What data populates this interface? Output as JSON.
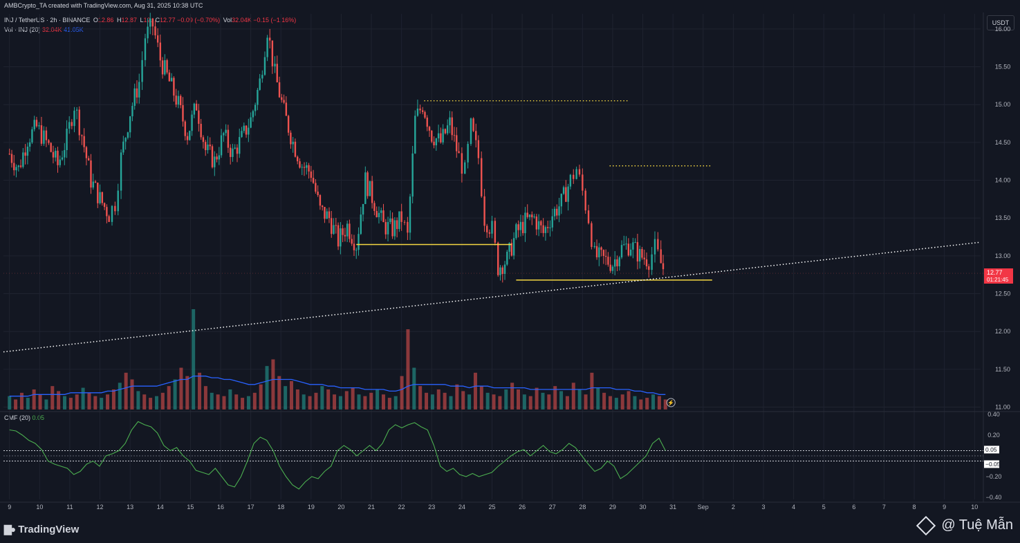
{
  "header": {
    "text": "AMBCrypto_TA created with TradingView.com, Aug 31, 2025 10:38 UTC"
  },
  "legend": {
    "symbol": "INJ / TetherUS · 2h · BINANCE",
    "o_label": "O",
    "o_value": "12.86",
    "h_label": "H",
    "h_value": "12.87",
    "l_label": "L",
    "l_value": "12.",
    "c_label": "C",
    "c_value": "12.77",
    "change": "−0.09 (−0.70%)",
    "vol_label": "Vol",
    "vol_value": "32.04K",
    "vol_change": "−0.15 (−1.16%)",
    "vol_ma_label": "Vol · INJ (20)",
    "vol_ma_value1": "32.04K",
    "vol_ma_value2": "41.05K",
    "cmf_label": "CMF (20)",
    "cmf_value": "0.05"
  },
  "currency_button": "USDT",
  "last_price": {
    "value": "12.77",
    "countdown": "01:21:45"
  },
  "cmf_badges": {
    "pos": "0.05",
    "neg": "−0.05"
  },
  "footer": {
    "brand": "TradingView",
    "watermark": "@ Tuệ Mẫn"
  },
  "colors": {
    "up": "#26a69a",
    "down": "#ef5350",
    "vol_ma": "#2962ff",
    "cmf": "#4caf50",
    "level": "#f5d742",
    "trendline": "#ffffff",
    "background": "#131722"
  },
  "chart_data": [
    {
      "type": "candlestick",
      "title": "INJ / TetherUS · 2h · BINANCE",
      "ylabel": "",
      "ylim": [
        10.95,
        16.2
      ],
      "yticks": [
        "16.00",
        "15.50",
        "15.00",
        "14.50",
        "14.00",
        "13.50",
        "13.00",
        "12.50",
        "12.00",
        "11.50",
        "11.00"
      ],
      "ytick_values": [
        16.0,
        15.5,
        15.0,
        14.5,
        14.0,
        13.5,
        13.0,
        12.5,
        12.0,
        11.5,
        11.0
      ],
      "xticks": [
        "9",
        "10",
        "11",
        "12",
        "13",
        "14",
        "15",
        "16",
        "17",
        "18",
        "19",
        "20",
        "21",
        "22",
        "23",
        "24",
        "25",
        "26",
        "27",
        "28",
        "29",
        "30",
        "31",
        "Sep",
        "2",
        "3",
        "4",
        "5",
        "6",
        "7",
        "8",
        "9",
        "10"
      ],
      "x_unit": "days from Aug 9 (index of tick)",
      "x_range": [
        -0.2,
        32.2
      ],
      "close_path": [
        [
          0.0,
          14.35
        ],
        [
          0.3,
          14.15
        ],
        [
          0.6,
          14.55
        ],
        [
          0.9,
          14.7
        ],
        [
          1.3,
          14.45
        ],
        [
          1.6,
          14.2
        ],
        [
          1.9,
          14.55
        ],
        [
          2.15,
          15.0
        ],
        [
          2.4,
          14.6
        ],
        [
          2.7,
          14.0
        ],
        [
          3.0,
          13.75
        ],
        [
          3.3,
          13.55
        ],
        [
          3.5,
          13.7
        ],
        [
          3.7,
          14.3
        ],
        [
          4.0,
          14.9
        ],
        [
          4.3,
          15.3
        ],
        [
          4.5,
          15.9
        ],
        [
          4.75,
          16.05
        ],
        [
          5.0,
          15.6
        ],
        [
          5.3,
          15.3
        ],
        [
          5.6,
          15.0
        ],
        [
          5.9,
          14.6
        ],
        [
          6.2,
          15.0
        ],
        [
          6.5,
          14.4
        ],
        [
          6.8,
          14.25
        ],
        [
          7.1,
          14.6
        ],
        [
          7.4,
          14.35
        ],
        [
          7.7,
          14.55
        ],
        [
          8.0,
          14.8
        ],
        [
          8.3,
          15.3
        ],
        [
          8.55,
          16.0
        ],
        [
          8.8,
          15.4
        ],
        [
          9.1,
          14.9
        ],
        [
          9.4,
          14.5
        ],
        [
          9.7,
          14.2
        ],
        [
          10.0,
          14.1
        ],
        [
          10.3,
          13.6
        ],
        [
          10.6,
          13.5
        ],
        [
          10.9,
          13.2
        ],
        [
          11.2,
          13.4
        ],
        [
          11.5,
          13.15
        ],
        [
          11.8,
          14.0
        ],
        [
          12.1,
          13.7
        ],
        [
          12.4,
          13.4
        ],
        [
          12.7,
          13.35
        ],
        [
          13.0,
          13.5
        ],
        [
          13.2,
          13.25
        ],
        [
          13.45,
          14.8
        ],
        [
          13.7,
          15.0
        ],
        [
          14.0,
          14.6
        ],
        [
          14.3,
          14.5
        ],
        [
          14.6,
          14.75
        ],
        [
          14.9,
          14.3
        ],
        [
          15.1,
          14.1
        ],
        [
          15.3,
          14.7
        ],
        [
          15.55,
          14.3
        ],
        [
          15.75,
          13.5
        ],
        [
          16.0,
          13.35
        ],
        [
          16.2,
          12.85
        ],
        [
          16.5,
          12.95
        ],
        [
          16.8,
          13.3
        ],
        [
          17.1,
          13.45
        ],
        [
          17.4,
          13.5
        ],
        [
          17.7,
          13.3
        ],
        [
          18.0,
          13.55
        ],
        [
          18.3,
          13.7
        ],
        [
          18.6,
          14.0
        ],
        [
          18.8,
          14.15
        ],
        [
          19.0,
          13.85
        ],
        [
          19.2,
          13.5
        ],
        [
          19.4,
          13.0
        ],
        [
          19.7,
          12.95
        ],
        [
          20.0,
          12.9
        ],
        [
          20.3,
          13.1
        ],
        [
          20.6,
          13.15
        ],
        [
          20.9,
          13.0
        ],
        [
          21.2,
          12.95
        ],
        [
          21.4,
          13.1
        ],
        [
          21.6,
          12.9
        ],
        [
          21.75,
          12.77
        ]
      ],
      "candle_color_sequence": "up=1 down=0 alternating per close_path direction"
    },
    {
      "type": "bar",
      "title": "Vol · INJ (20)",
      "series": [
        {
          "name": "Volume",
          "values": [
            8,
            6,
            10,
            7,
            12,
            9,
            6,
            14,
            11,
            8,
            7,
            9,
            13,
            10,
            8,
            7,
            9,
            12,
            16,
            22,
            18,
            11,
            9,
            7,
            8,
            10,
            14,
            18,
            25,
            20,
            60,
            22,
            14,
            10,
            9,
            8,
            12,
            9,
            7,
            8,
            10,
            15,
            26,
            30,
            20,
            14,
            17,
            12,
            9,
            8,
            10,
            14,
            12,
            9,
            8,
            11,
            13,
            9,
            8,
            10,
            12,
            9,
            7,
            8,
            20,
            48,
            25,
            14,
            10,
            9,
            12,
            10,
            8,
            15,
            11,
            9,
            22,
            14,
            10,
            9,
            8,
            12,
            16,
            12,
            9,
            8,
            13,
            10,
            9,
            14,
            11,
            8,
            16,
            12,
            9,
            22,
            13,
            10,
            8,
            7,
            9,
            11,
            8,
            6,
            7,
            9,
            8,
            6
          ]
        },
        {
          "name": "Vol MA (20)",
          "values": [
            8,
            8,
            8,
            8,
            9,
            9,
            9,
            9,
            9,
            9,
            10,
            10,
            10,
            10,
            10,
            10,
            11,
            11,
            12,
            13,
            14,
            14,
            14,
            14,
            14,
            15,
            16,
            17,
            18,
            18,
            20,
            20,
            20,
            19,
            19,
            18,
            18,
            17,
            16,
            15,
            15,
            16,
            17,
            18,
            18,
            18,
            18,
            17,
            16,
            15,
            15,
            15,
            14,
            14,
            13,
            13,
            13,
            13,
            12,
            12,
            12,
            12,
            11,
            11,
            12,
            14,
            15,
            15,
            15,
            15,
            15,
            15,
            14,
            14,
            14,
            13,
            14,
            14,
            14,
            13,
            13,
            13,
            13,
            13,
            13,
            12,
            12,
            12,
            12,
            12,
            12,
            12,
            12,
            12,
            12,
            13,
            13,
            13,
            13,
            12,
            12,
            12,
            11,
            11,
            10,
            10,
            9,
            9
          ]
        }
      ]
    },
    {
      "type": "line",
      "title": "CMF (20)",
      "ylim": [
        -0.42,
        0.42
      ],
      "yticks": [
        "0.40",
        "0.20",
        "0.05",
        "−0.05",
        "−0.20",
        "−0.40"
      ],
      "ytick_values": [
        0.4,
        0.2,
        0.05,
        -0.05,
        -0.2,
        -0.4
      ],
      "series": [
        {
          "name": "CMF (20)",
          "values": [
            0.25,
            0.24,
            0.2,
            0.15,
            0.12,
            0.06,
            -0.05,
            -0.08,
            -0.1,
            -0.12,
            -0.18,
            -0.15,
            -0.08,
            -0.05,
            -0.1,
            0.0,
            0.02,
            0.05,
            0.12,
            0.25,
            0.33,
            0.3,
            0.28,
            0.22,
            0.1,
            0.05,
            0.08,
            0.0,
            -0.05,
            -0.14,
            -0.16,
            -0.18,
            -0.12,
            -0.2,
            -0.28,
            -0.3,
            -0.2,
            -0.05,
            0.12,
            0.18,
            0.15,
            0.05,
            -0.1,
            -0.2,
            -0.28,
            -0.32,
            -0.25,
            -0.2,
            -0.22,
            -0.15,
            -0.1,
            0.05,
            0.1,
            0.06,
            0.0,
            0.05,
            0.1,
            0.05,
            0.12,
            0.25,
            0.3,
            0.27,
            0.3,
            0.32,
            0.28,
            0.25,
            0.1,
            -0.1,
            -0.15,
            -0.12,
            -0.18,
            -0.2,
            -0.17,
            -0.2,
            -0.18,
            -0.16,
            -0.1,
            -0.05,
            0.0,
            0.04,
            0.06,
            0.0,
            0.05,
            0.1,
            0.04,
            0.02,
            0.06,
            0.12,
            0.08,
            0.0,
            -0.08,
            -0.15,
            -0.12,
            -0.05,
            -0.1,
            -0.22,
            -0.18,
            -0.12,
            -0.06,
            0.0,
            0.12,
            0.17,
            0.05
          ]
        }
      ]
    }
  ],
  "annotations": {
    "horizontal_levels": [
      {
        "y": 13.15,
        "x_start": 11.5,
        "x_end": 16.65,
        "style": "solid"
      },
      {
        "y": 12.68,
        "x_start": 16.8,
        "x_end": 23.3,
        "style": "solid"
      },
      {
        "y": 15.05,
        "x_start": 13.75,
        "x_end": 20.5,
        "style": "dotted"
      },
      {
        "y": 14.19,
        "x_start": 19.9,
        "x_end": 23.3,
        "style": "dotted"
      }
    ],
    "trendline": {
      "start": [
        -0.2,
        11.73
      ],
      "end": [
        32.2,
        13.18
      ]
    }
  }
}
